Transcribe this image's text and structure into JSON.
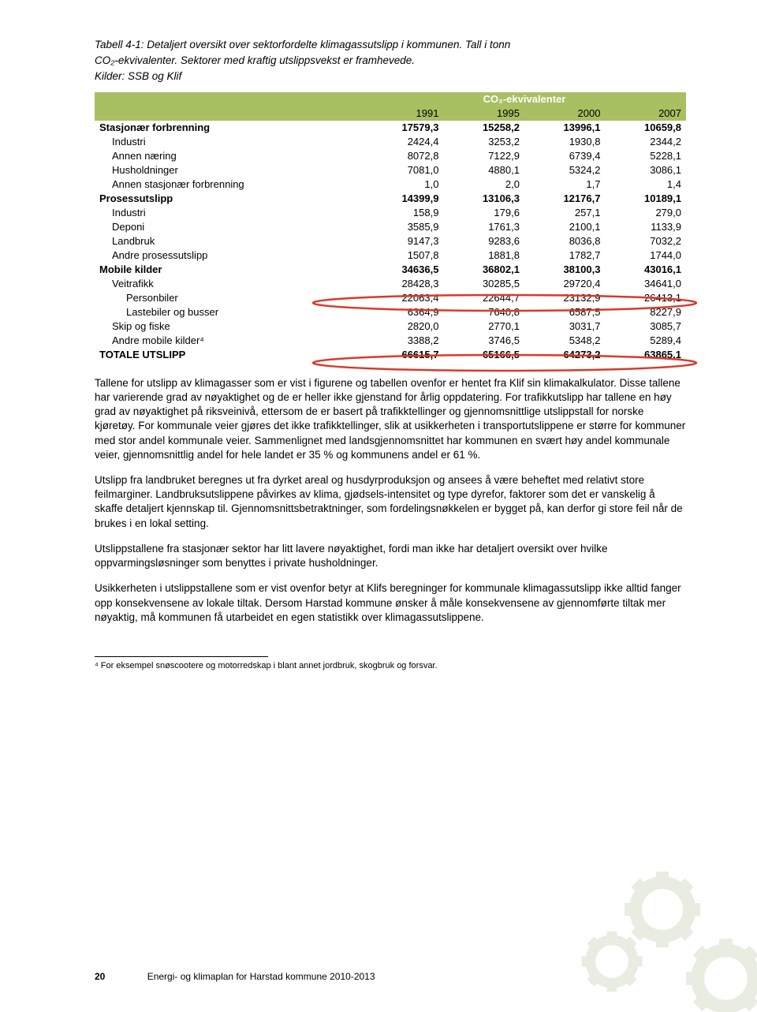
{
  "caption_lines": [
    "Tabell 4-1: Detaljert oversikt over sektorfordelte klimagassutslipp i kommunen. Tall i tonn",
    "CO₂-ekvivalenter. Sektorer med kraftig utslippsvekst er framhevede.",
    "Kilder: SSB og Klif"
  ],
  "table": {
    "header_band_color": "#a8bf62",
    "subhead_label": "CO₂-ekvivalenter",
    "years": [
      "1991",
      "1995",
      "2000",
      "2007"
    ],
    "rows": [
      {
        "label": "Stasjonær forbrenning",
        "vals": [
          "17579,3",
          "15258,2",
          "13996,1",
          "10659,8"
        ],
        "bold": true,
        "indent": 0
      },
      {
        "label": "Industri",
        "vals": [
          "2424,4",
          "3253,2",
          "1930,8",
          "2344,2"
        ],
        "bold": false,
        "indent": 1
      },
      {
        "label": "Annen næring",
        "vals": [
          "8072,8",
          "7122,9",
          "6739,4",
          "5228,1"
        ],
        "bold": false,
        "indent": 1
      },
      {
        "label": "Husholdninger",
        "vals": [
          "7081,0",
          "4880,1",
          "5324,2",
          "3086,1"
        ],
        "bold": false,
        "indent": 1
      },
      {
        "label": "Annen stasjonær forbrenning",
        "vals": [
          "1,0",
          "2,0",
          "1,7",
          "1,4"
        ],
        "bold": false,
        "indent": 1
      },
      {
        "label": "Prosessutslipp",
        "vals": [
          "14399,9",
          "13106,3",
          "12176,7",
          "10189,1"
        ],
        "bold": true,
        "indent": 0
      },
      {
        "label": "Industri",
        "vals": [
          "158,9",
          "179,6",
          "257,1",
          "279,0"
        ],
        "bold": false,
        "indent": 1
      },
      {
        "label": "Deponi",
        "vals": [
          "3585,9",
          "1761,3",
          "2100,1",
          "1133,9"
        ],
        "bold": false,
        "indent": 1
      },
      {
        "label": "Landbruk",
        "vals": [
          "9147,3",
          "9283,6",
          "8036,8",
          "7032,2"
        ],
        "bold": false,
        "indent": 1
      },
      {
        "label": "Andre prosessutslipp",
        "vals": [
          "1507,8",
          "1881,8",
          "1782,7",
          "1744,0"
        ],
        "bold": false,
        "indent": 1
      },
      {
        "label": "Mobile kilder",
        "vals": [
          "34636,5",
          "36802,1",
          "38100,3",
          "43016,1"
        ],
        "bold": true,
        "indent": 0
      },
      {
        "label": "Veitrafikk",
        "vals": [
          "28428,3",
          "30285,5",
          "29720,4",
          "34641,0"
        ],
        "bold": false,
        "indent": 1
      },
      {
        "label": "Personbiler",
        "vals": [
          "22063,4",
          "22644,7",
          "23132,9",
          "26413,1"
        ],
        "bold": false,
        "indent": 2
      },
      {
        "label": "Lastebiler og busser",
        "vals": [
          "6364,9",
          "7640,8",
          "6587,5",
          "8227,9"
        ],
        "bold": false,
        "indent": 2
      },
      {
        "label": "Skip og fiske",
        "vals": [
          "2820,0",
          "2770,1",
          "3031,7",
          "3085,7"
        ],
        "bold": false,
        "indent": 1
      },
      {
        "label": "Andre mobile kilder⁴",
        "vals": [
          "3388,2",
          "3746,5",
          "5348,2",
          "5289,4"
        ],
        "bold": false,
        "indent": 1
      },
      {
        "label": "TOTALE UTSLIPP",
        "vals": [
          "66615,7",
          "65166,5",
          "64273,2",
          "63865,1"
        ],
        "bold": true,
        "indent": 0,
        "smallcaps": true
      }
    ],
    "highlights": [
      {
        "row_index": 11,
        "color": "#d93a2b"
      },
      {
        "row_index": 15,
        "color": "#d93a2b"
      }
    ]
  },
  "paragraphs": [
    "Tallene for utslipp av klimagasser som er vist i figurene og tabellen ovenfor er hentet fra Klif sin klimakalkulator. Disse tallene har varierende grad av nøyaktighet og de er heller ikke gjenstand for årlig oppdatering. For trafikkutslipp har tallene en høy grad av nøyaktighet på riksveinivå, ettersom de er basert på trafikktellinger og gjennomsnittlige utslippstall for norske kjøretøy. For kommunale veier gjøres det ikke trafikktellinger, slik at usikkerheten i transportutslippene er større for kommuner med stor andel kommunale veier. Sammenlignet med landsgjennomsnittet har kommunen en svært høy andel kommunale veier, gjennomsnittlig andel for hele landet er 35 % og kommunens andel er 61 %.",
    "Utslipp fra landbruket beregnes ut fra dyrket areal og husdyrproduksjon og ansees å være beheftet med relativt store feilmarginer. Landbruksutslippene påvirkes av klima, gjødsels-intensitet og type dyrefor, faktorer som det er vanskelig å skaffe detaljert kjennskap til. Gjennomsnittsbetraktninger, som fordelingsnøkkelen er bygget på, kan derfor gi store feil når de brukes i en lokal setting.",
    "Utslippstallene fra stasjonær sektor har litt lavere nøyaktighet, fordi man ikke har detaljert oversikt over hvilke oppvarmingsløsninger som benyttes i private husholdninger.",
    "Usikkerheten i utslippstallene som er vist ovenfor betyr at Klifs beregninger for kommunale klimagassutslipp ikke alltid fanger opp konsekvensene av lokale tiltak. Dersom Harstad kommune ønsker å måle konsekvensene av gjennomførte tiltak mer nøyaktig, må kommunen få utarbeidet en egen statistikk over klimagassutslippene."
  ],
  "footnote": "⁴ For eksempel snøscootere og motorredskap i blant annet jordbruk, skogbruk og forsvar.",
  "footer": {
    "page": "20",
    "title": "Energi- og klimaplan for Harstad kommune 2010-2013"
  },
  "decoration": {
    "gear_color": "#cfd6c3",
    "gear_highlight": "#ffffff"
  }
}
